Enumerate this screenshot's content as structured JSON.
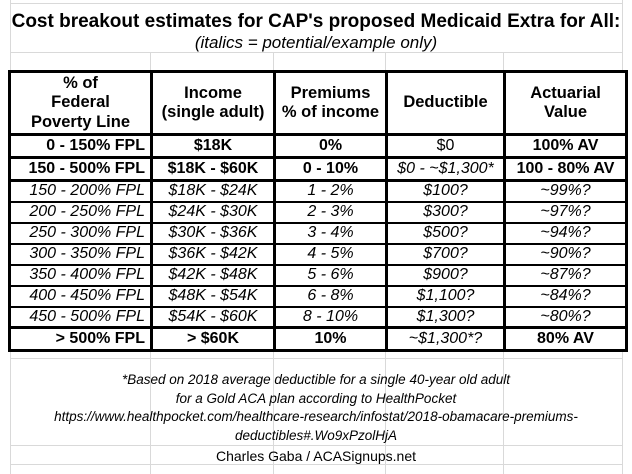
{
  "chart_data": {
    "type": "table",
    "title": "Cost breakout estimates for CAP's proposed Medicaid Extra for All:",
    "subtitle": "(italics = potential/example only)",
    "columns": [
      "% of\nFederal\nPoverty Line",
      "Income\n(single adult)",
      "Premiums\n% of income",
      "Deductible",
      "Actuarial\nValue"
    ],
    "rows": [
      {
        "type": "summary",
        "cells": [
          "0 - 150% FPL",
          "$18K",
          "0%",
          "$0",
          "100% AV"
        ],
        "styles": [
          "b",
          "b",
          "b",
          "r",
          "b"
        ]
      },
      {
        "type": "summary",
        "cells": [
          "150 - 500% FPL",
          "$18K - $60K",
          "0 - 10%",
          "$0 - ~$1,300*",
          "100 - 80% AV"
        ],
        "styles": [
          "b",
          "b",
          "b",
          "i",
          "b"
        ]
      },
      {
        "type": "detail",
        "cells": [
          "150 - 200% FPL",
          "$18K - $24K",
          "1 - 2%",
          "$100?",
          "~99%?"
        ],
        "styles": [
          "i",
          "i",
          "i",
          "i",
          "i"
        ]
      },
      {
        "type": "detail",
        "cells": [
          "200 - 250% FPL",
          "$24K - $30K",
          "2 - 3%",
          "$300?",
          "~97%?"
        ],
        "styles": [
          "i",
          "i",
          "i",
          "i",
          "i"
        ]
      },
      {
        "type": "detail",
        "cells": [
          "250 - 300% FPL",
          "$30K - $36K",
          "3 - 4%",
          "$500?",
          "~94%?"
        ],
        "styles": [
          "i",
          "i",
          "i",
          "i",
          "i"
        ]
      },
      {
        "type": "detail",
        "cells": [
          "300 - 350% FPL",
          "$36K - $42K",
          "4 - 5%",
          "$700?",
          "~90%?"
        ],
        "styles": [
          "i",
          "i",
          "i",
          "i",
          "i"
        ]
      },
      {
        "type": "detail",
        "cells": [
          "350 - 400% FPL",
          "$42K - $48K",
          "5 - 6%",
          "$900?",
          "~87%?"
        ],
        "styles": [
          "i",
          "i",
          "i",
          "i",
          "i"
        ]
      },
      {
        "type": "detail",
        "cells": [
          "400 - 450% FPL",
          "$48K - $54K",
          "6 - 8%",
          "$1,100?",
          "~84%?"
        ],
        "styles": [
          "i",
          "i",
          "i",
          "i",
          "i"
        ]
      },
      {
        "type": "detail",
        "cells": [
          "450 - 500% FPL",
          "$54K - $60K",
          "8 - 10%",
          "$1,300?",
          "~80%?"
        ],
        "styles": [
          "i",
          "i",
          "i",
          "i",
          "i"
        ]
      },
      {
        "type": "summary",
        "cells": [
          "> 500% FPL",
          "> $60K",
          "10%",
          "~$1,300*?",
          "80% AV"
        ],
        "styles": [
          "b",
          "b",
          "b",
          "i",
          "b"
        ]
      }
    ],
    "footnote_lines": [
      "*Based on 2018 average deductible for a single 40-year old adult",
      "for a Gold ACA plan according to HealthPocket",
      "https://www.healthpocket.com/healthcare-research/infostat/2018-obamacare-premiums-",
      "deductibles#.Wo9xPzolHjA"
    ],
    "credit": "Charles Gaba / ACASignups.net",
    "colors": {
      "text": "#000000",
      "table_border": "#000000",
      "gridline": "#d9d9d9",
      "background": "#ffffff"
    }
  }
}
